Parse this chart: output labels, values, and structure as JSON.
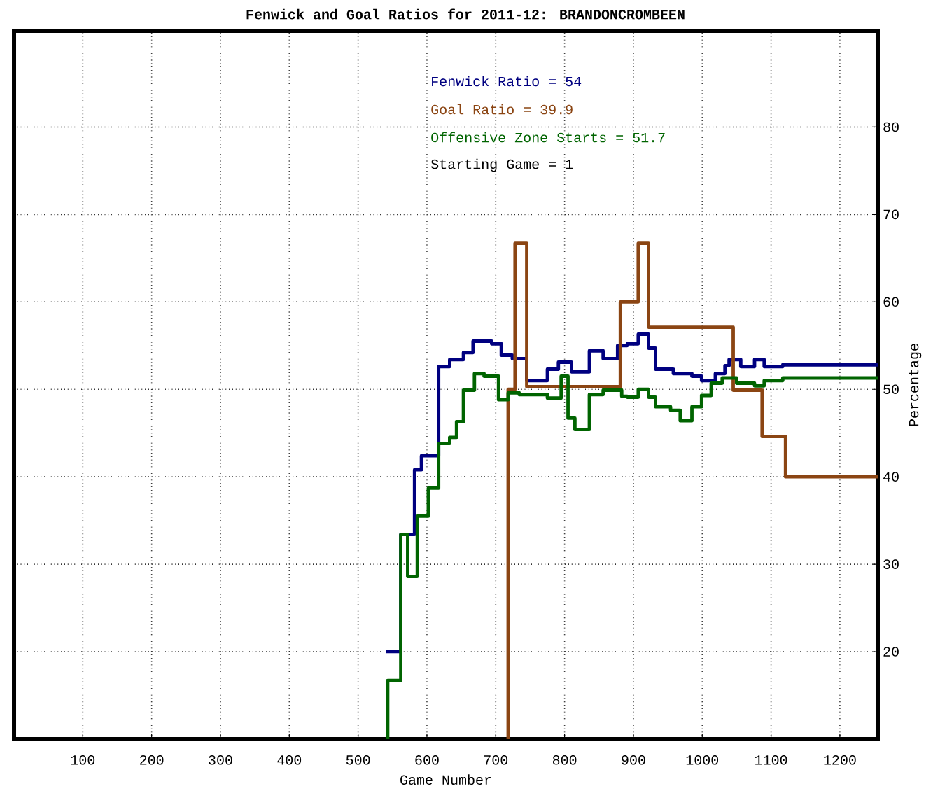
{
  "chart_data": {
    "type": "step",
    "title": "Fenwick and Goal Ratios for 2011-12: BRANDONCROMBEEN",
    "xlabel": "Game Number",
    "ylabel": "Percentage",
    "xlim": [
      0,
      1255
    ],
    "ylim": [
      10,
      91
    ],
    "xticks": [
      100,
      200,
      300,
      400,
      500,
      600,
      700,
      800,
      900,
      1000,
      1100,
      1200
    ],
    "yticks": [
      20,
      30,
      40,
      50,
      60,
      70,
      80
    ],
    "grid": true,
    "series": [
      {
        "name": "Fenwick Ratio = 54",
        "color": "#000080",
        "x": [
          541,
          562,
          582,
          592,
          617,
          633,
          653,
          667,
          694,
          708,
          724,
          745,
          775,
          791,
          810,
          836,
          856,
          877,
          891,
          907,
          922,
          932,
          958,
          985,
          999,
          1019,
          1033,
          1039,
          1056,
          1076,
          1090,
          1117,
          1255
        ],
        "values": [
          20,
          33.4,
          40.8,
          42.4,
          52.6,
          53.4,
          54.2,
          55.5,
          55.2,
          53.9,
          53.5,
          51,
          52.3,
          53.1,
          52,
          54.4,
          53.5,
          55,
          55.2,
          56.3,
          54.7,
          52.3,
          51.8,
          51.5,
          51,
          51.8,
          52.7,
          53.4,
          52.6,
          53.4,
          52.6,
          52.8,
          52.8
        ]
      },
      {
        "name": "Goal Ratio = 39.9",
        "color": "#8b4513",
        "x": [
          716,
          718,
          728,
          745,
          881,
          907,
          922,
          1045,
          1087,
          1121,
          1255
        ],
        "values": [
          10,
          50,
          66.7,
          50.3,
          60,
          66.7,
          57.1,
          49.9,
          44.6,
          40,
          40
        ]
      },
      {
        "name": "Offensive Zone Starts = 51.7",
        "color": "#006400",
        "x": [
          541,
          543,
          562,
          572,
          586,
          602,
          617,
          633,
          643,
          653,
          669,
          683,
          704,
          718,
          734,
          775,
          795,
          805,
          815,
          836,
          856,
          883,
          891,
          907,
          922,
          932,
          954,
          968,
          985,
          999,
          1013,
          1029,
          1050,
          1076,
          1090,
          1117,
          1255
        ],
        "values": [
          10,
          16.7,
          33.4,
          28.6,
          35.5,
          38.7,
          43.8,
          44.5,
          46.3,
          49.9,
          51.8,
          51.5,
          48.8,
          49.6,
          49.4,
          49,
          51.5,
          46.7,
          45.4,
          49.4,
          49.9,
          49.2,
          49.1,
          50,
          49.1,
          48,
          47.6,
          46.4,
          48,
          49.3,
          50.7,
          51.3,
          50.7,
          50.4,
          51,
          51.3,
          51.3
        ]
      }
    ],
    "annotations": [
      "Starting Game = 1"
    ]
  }
}
